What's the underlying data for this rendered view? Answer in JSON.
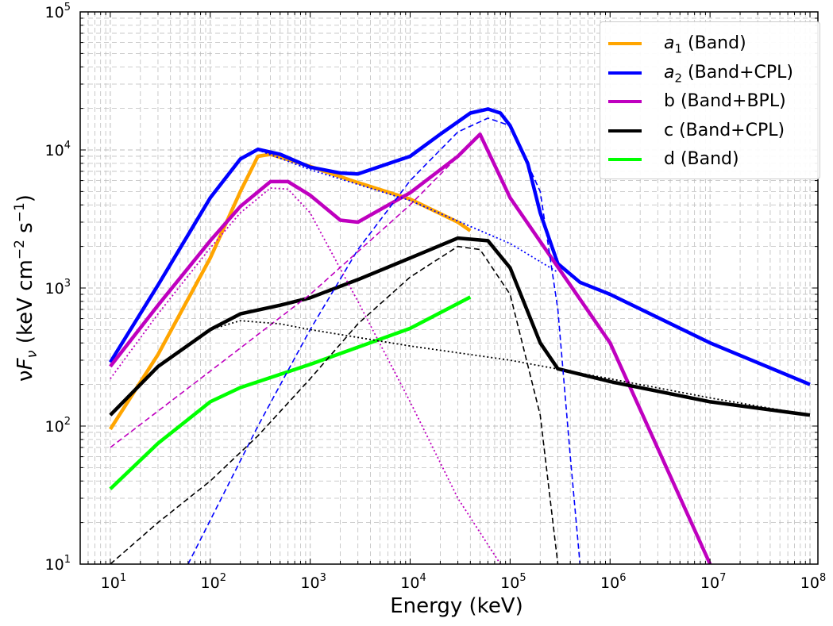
{
  "chart_data": {
    "type": "line",
    "title": "",
    "xlabel": "Energy (keV)",
    "ylabel_html": "νF<tspan font-style='italic'></tspan>",
    "ylabel": "νFν (keV cm⁻² s⁻¹)",
    "xscale": "log",
    "yscale": "log",
    "xlim": [
      5,
      120000000
    ],
    "ylim": [
      10,
      100000
    ],
    "grid": true,
    "legend_position": "top-right",
    "x_tick_exponents": [
      1,
      2,
      3,
      4,
      5,
      6,
      7,
      8
    ],
    "y_tick_exponents": [
      1,
      2,
      3,
      4,
      5
    ],
    "colors": {
      "a1": "#ffa500",
      "a2": "#0000ff",
      "b": "#bf00bf",
      "c": "#000000",
      "d": "#00ff00"
    },
    "legend": [
      {
        "key": "a1",
        "sym": "a",
        "sub": "1",
        "text": " (Band)",
        "color": "#ffa500"
      },
      {
        "key": "a2",
        "sym": "a",
        "sub": "2",
        "text": " (Band+CPL)",
        "color": "#0000ff"
      },
      {
        "key": "b",
        "sym": "",
        "sub": "",
        "text": "b (Band+BPL)",
        "color": "#bf00bf"
      },
      {
        "key": "c",
        "sym": "",
        "sub": "",
        "text": "c (Band+CPL)",
        "color": "#000000"
      },
      {
        "key": "d",
        "sym": "",
        "sub": "",
        "text": "d (Band)",
        "color": "#00ff00"
      }
    ],
    "series": [
      {
        "key": "a1",
        "name": "a1 (Band)",
        "style": "solid",
        "color": "#ffa500",
        "points": [
          [
            10,
            95
          ],
          [
            30,
            330
          ],
          [
            100,
            1650
          ],
          [
            200,
            5000
          ],
          [
            300,
            9000
          ],
          [
            400,
            9300
          ],
          [
            1000,
            7600
          ],
          [
            3000,
            5800
          ],
          [
            10000,
            4400
          ],
          [
            30000,
            3000
          ],
          [
            40000,
            2600
          ]
        ]
      },
      {
        "key": "a2",
        "name": "a2 (Band+CPL)",
        "style": "solid",
        "color": "#0000ff",
        "points": [
          [
            10,
            290
          ],
          [
            30,
            1050
          ],
          [
            100,
            4500
          ],
          [
            200,
            8600
          ],
          [
            300,
            10100
          ],
          [
            500,
            9300
          ],
          [
            1000,
            7500
          ],
          [
            2000,
            6800
          ],
          [
            3000,
            6700
          ],
          [
            10000,
            9000
          ],
          [
            20000,
            13000
          ],
          [
            40000,
            18500
          ],
          [
            60000,
            19800
          ],
          [
            80000,
            18500
          ],
          [
            100000,
            15000
          ],
          [
            150000,
            8000
          ],
          [
            200000,
            3500
          ],
          [
            300000,
            1500
          ],
          [
            500000,
            1100
          ],
          [
            1000000,
            900
          ],
          [
            10000000,
            400
          ],
          [
            100000000,
            200
          ]
        ]
      },
      {
        "key": "b",
        "name": "b (Band+BPL)",
        "style": "solid",
        "color": "#bf00bf",
        "points": [
          [
            10,
            270
          ],
          [
            30,
            750
          ],
          [
            100,
            2200
          ],
          [
            200,
            3900
          ],
          [
            400,
            5900
          ],
          [
            600,
            5900
          ],
          [
            1000,
            4700
          ],
          [
            2000,
            3100
          ],
          [
            3000,
            3000
          ],
          [
            10000,
            4900
          ],
          [
            30000,
            9000
          ],
          [
            50000,
            13000
          ],
          [
            100000,
            4500
          ],
          [
            1000000,
            400
          ],
          [
            10000000,
            10
          ]
        ]
      },
      {
        "key": "c",
        "name": "c (Band+CPL)",
        "style": "solid",
        "color": "#000000",
        "points": [
          [
            10,
            120
          ],
          [
            30,
            270
          ],
          [
            100,
            500
          ],
          [
            200,
            650
          ],
          [
            500,
            750
          ],
          [
            1000,
            850
          ],
          [
            3000,
            1150
          ],
          [
            10000,
            1650
          ],
          [
            30000,
            2300
          ],
          [
            60000,
            2200
          ],
          [
            100000,
            1400
          ],
          [
            200000,
            400
          ],
          [
            300000,
            260
          ],
          [
            1000000,
            210
          ],
          [
            10000000,
            150
          ],
          [
            100000000,
            120
          ]
        ]
      },
      {
        "key": "d",
        "name": "d (Band)",
        "style": "solid",
        "color": "#00ff00",
        "points": [
          [
            10,
            35
          ],
          [
            30,
            75
          ],
          [
            100,
            150
          ],
          [
            200,
            190
          ],
          [
            1000,
            280
          ],
          [
            10000,
            510
          ],
          [
            40000,
            860
          ]
        ]
      },
      {
        "key": "a2-cpl",
        "name": "",
        "style": "dashed",
        "color": "#0000ff",
        "points": [
          [
            60,
            10
          ],
          [
            300,
            100
          ],
          [
            1000,
            500
          ],
          [
            3000,
            1900
          ],
          [
            10000,
            6000
          ],
          [
            30000,
            13500
          ],
          [
            60000,
            17000
          ],
          [
            100000,
            15000
          ],
          [
            200000,
            5000
          ],
          [
            300000,
            700
          ],
          [
            400000,
            60
          ],
          [
            500000,
            10
          ]
        ]
      },
      {
        "key": "a2-band",
        "name": "",
        "style": "dotted",
        "color": "#0000ff",
        "points": [
          [
            300,
            10000
          ],
          [
            1000,
            7200
          ],
          [
            10000,
            4300
          ],
          [
            100000,
            2100
          ],
          [
            300000,
            1300
          ]
        ]
      },
      {
        "key": "b-bpl",
        "name": "",
        "style": "dashed",
        "color": "#bf00bf",
        "points": [
          [
            10,
            70
          ],
          [
            100,
            250
          ],
          [
            1000,
            900
          ],
          [
            10000,
            4000
          ],
          [
            50000,
            13000
          ]
        ]
      },
      {
        "key": "b-band",
        "name": "",
        "style": "dotted",
        "color": "#bf00bf",
        "points": [
          [
            10,
            220
          ],
          [
            30,
            650
          ],
          [
            100,
            1950
          ],
          [
            200,
            3500
          ],
          [
            400,
            5300
          ],
          [
            600,
            5200
          ],
          [
            1000,
            3500
          ],
          [
            3000,
            800
          ],
          [
            10000,
            150
          ],
          [
            30000,
            30
          ],
          [
            80000,
            10
          ]
        ]
      },
      {
        "key": "c-cpl",
        "name": "",
        "style": "dashed",
        "color": "#000000",
        "points": [
          [
            10,
            10
          ],
          [
            30,
            20
          ],
          [
            100,
            40
          ],
          [
            300,
            85
          ],
          [
            1000,
            220
          ],
          [
            3000,
            550
          ],
          [
            10000,
            1200
          ],
          [
            30000,
            2000
          ],
          [
            50000,
            1900
          ],
          [
            100000,
            900
          ],
          [
            200000,
            120
          ],
          [
            300000,
            10
          ]
        ]
      },
      {
        "key": "c-band",
        "name": "",
        "style": "dotted",
        "color": "#000000",
        "points": [
          [
            10,
            120
          ],
          [
            30,
            270
          ],
          [
            100,
            500
          ],
          [
            200,
            580
          ],
          [
            500,
            550
          ],
          [
            1000,
            500
          ],
          [
            10000,
            380
          ],
          [
            100000,
            300
          ],
          [
            1000000,
            220
          ],
          [
            10000000,
            160
          ],
          [
            100000000,
            120
          ]
        ]
      }
    ]
  }
}
